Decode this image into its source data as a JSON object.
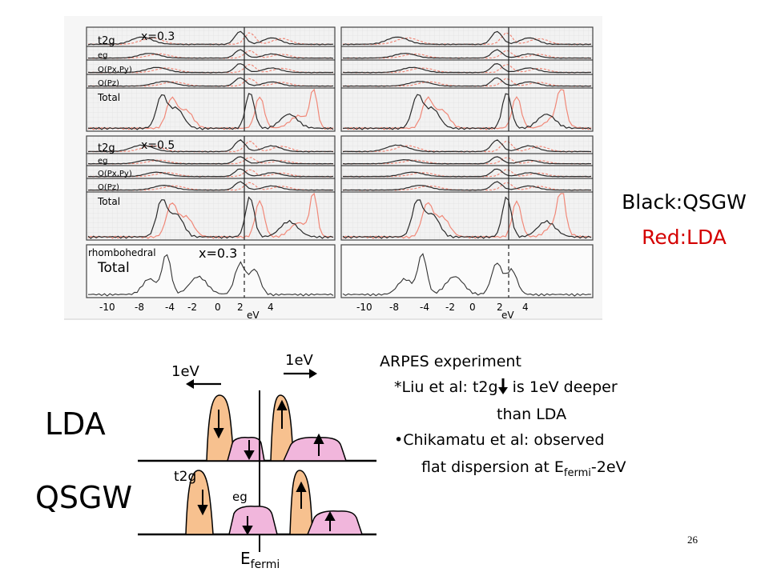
{
  "legend": {
    "black": "Black:QSGW",
    "red": "Red:LDA"
  },
  "figure": {
    "panel_labels": {
      "t2g": "t2g",
      "eg": "eg",
      "opxpy": "O(Px,Py)",
      "opz": "O(Pz)",
      "total": "Total",
      "x03": "x=0.3",
      "x05": "x=0.5",
      "rhombo": "rhombohedral",
      "rx03": "x=0.3"
    },
    "xaxis": {
      "ticks": [
        "-10",
        "-8",
        "-4",
        "-2",
        "0",
        "2",
        "4"
      ],
      "label": "eV"
    },
    "colors": {
      "qsgw": "#2a2a2a",
      "lda": "#f08878"
    }
  },
  "schematic": {
    "lda_label": "LDA",
    "qsgw_label": "QSGW",
    "shift_left": "1eV",
    "shift_right": "1eV",
    "t2g_label": "t2g",
    "eg_label": "eg",
    "efermi_main": "E",
    "efermi_sub": "fermi",
    "colors": {
      "t2g": "#f7c18f",
      "eg": "#f1b6dc",
      "outline": "#000000"
    }
  },
  "arpes": {
    "title": "ARPES experiment",
    "line1": "*Liu et al: t2g",
    "line1_end": " is 1eV deeper",
    "line2": "than LDA",
    "bullet": "•",
    "line3": "Chikamatu et al: observed",
    "line4_main": "flat dispersion at E",
    "line4_sub": "fermi",
    "line4_end": "-2eV"
  },
  "page_number": "26"
}
